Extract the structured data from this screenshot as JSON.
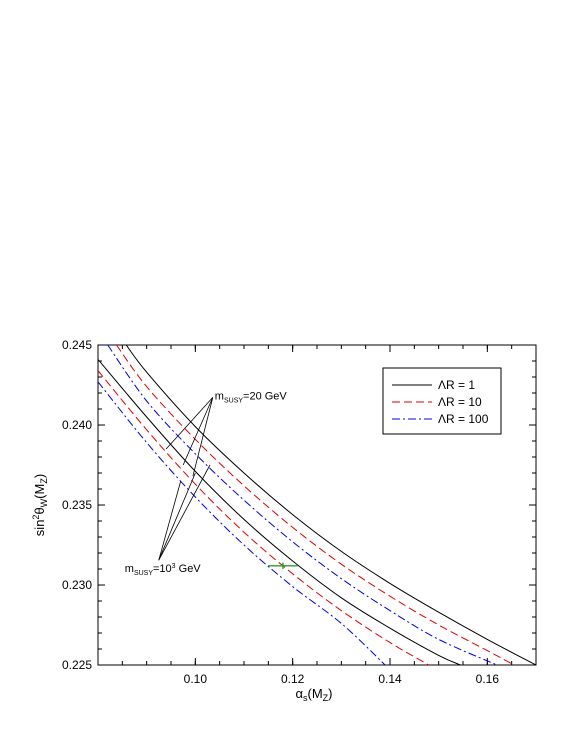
{
  "chart_data": {
    "type": "line",
    "xlabel": "αs(MZ)",
    "ylabel": "sin2θW(MZ)",
    "xlim": [
      0.08,
      0.17
    ],
    "ylim": [
      0.225,
      0.245
    ],
    "xticks": [
      0.1,
      0.12,
      0.14,
      0.16
    ],
    "yticks": [
      0.225,
      0.23,
      0.235,
      0.24,
      0.245
    ],
    "xtick_labels": [
      "0.10",
      "0.12",
      "0.14",
      "0.16"
    ],
    "ytick_labels": [
      "0.225",
      "0.230",
      "0.235",
      "0.240",
      "0.245"
    ],
    "grid": false,
    "legend_position": "top-right",
    "legend": [
      {
        "label": "ΛR = 1",
        "color": "#000000",
        "dash": "solid"
      },
      {
        "label": "ΛR = 10",
        "color": "#e00000",
        "dash": "dashed"
      },
      {
        "label": "ΛR = 100",
        "color": "#0000e0",
        "dash": "dashdot"
      }
    ],
    "series": [
      {
        "group": "msusy=20 GeV",
        "style": "ΛR = 1",
        "color": "#000000",
        "dash": "solid",
        "x": [
          0.0858,
          0.09,
          0.1,
          0.11,
          0.12,
          0.13,
          0.14,
          0.15,
          0.16,
          0.17
        ],
        "y": [
          0.245,
          0.2433,
          0.2399,
          0.237,
          0.2344,
          0.2321,
          0.2301,
          0.2283,
          0.2266,
          0.225
        ]
      },
      {
        "group": "msusy=20 GeV",
        "style": "ΛR = 10",
        "color": "#e00000",
        "dash": "dashed",
        "x": [
          0.0838,
          0.09,
          0.1,
          0.11,
          0.12,
          0.13,
          0.14,
          0.15,
          0.16,
          0.1655
        ],
        "y": [
          0.245,
          0.2424,
          0.2391,
          0.2362,
          0.2336,
          0.2313,
          0.2293,
          0.2275,
          0.2259,
          0.225
        ]
      },
      {
        "group": "msusy=20 GeV",
        "style": "ΛR = 100",
        "color": "#0000e0",
        "dash": "dashdot",
        "x": [
          0.082,
          0.09,
          0.1,
          0.11,
          0.12,
          0.13,
          0.14,
          0.15,
          0.162
        ],
        "y": [
          0.245,
          0.2415,
          0.2382,
          0.2353,
          0.2327,
          0.2304,
          0.2284,
          0.2266,
          0.225
        ]
      },
      {
        "group": "msusy=10^3 GeV",
        "style": "ΛR = 1",
        "color": "#000000",
        "dash": "solid",
        "x": [
          0.08,
          0.09,
          0.1,
          0.11,
          0.12,
          0.13,
          0.14,
          0.15,
          0.1545
        ],
        "y": [
          0.2441,
          0.2405,
          0.2371,
          0.2341,
          0.2315,
          0.2292,
          0.2273,
          0.2256,
          0.225
        ]
      },
      {
        "group": "msusy=10^3 GeV",
        "style": "ΛR = 10",
        "color": "#e00000",
        "dash": "dashed",
        "x": [
          0.08,
          0.09,
          0.1,
          0.11,
          0.12,
          0.13,
          0.14,
          0.148
        ],
        "y": [
          0.2434,
          0.2397,
          0.2363,
          0.2333,
          0.2307,
          0.2284,
          0.2264,
          0.225
        ]
      },
      {
        "group": "msusy=10^3 GeV",
        "style": "ΛR = 100",
        "color": "#0000e0",
        "dash": "dashdot",
        "x": [
          0.08,
          0.09,
          0.1,
          0.11,
          0.12,
          0.13,
          0.139
        ],
        "y": [
          0.2427,
          0.2389,
          0.2355,
          0.2325,
          0.2299,
          0.2276,
          0.225
        ]
      }
    ],
    "data_point": {
      "x": 0.118,
      "y": 0.2312,
      "x_err": 0.003,
      "y_err": 0.0002,
      "color": "#2a9d2a"
    },
    "annotations": [
      {
        "text_main": "m",
        "text_sub": "SUSY",
        "text_rest": "=20 GeV",
        "x": 0.104,
        "y": 0.2416,
        "pointer_targets": [
          [
            0.094,
            0.2385
          ],
          [
            0.0975,
            0.2375
          ],
          [
            0.0995,
            0.2368
          ]
        ]
      },
      {
        "text_main": "m",
        "text_sub": "SUSY",
        "text_rest": "=10",
        "text_sup": "3",
        "text_tail": " GeV",
        "x": 0.0855,
        "y": 0.2308,
        "pointer_targets": [
          [
            0.097,
            0.2365
          ],
          [
            0.1,
            0.237
          ],
          [
            0.103,
            0.2375
          ]
        ]
      }
    ]
  }
}
